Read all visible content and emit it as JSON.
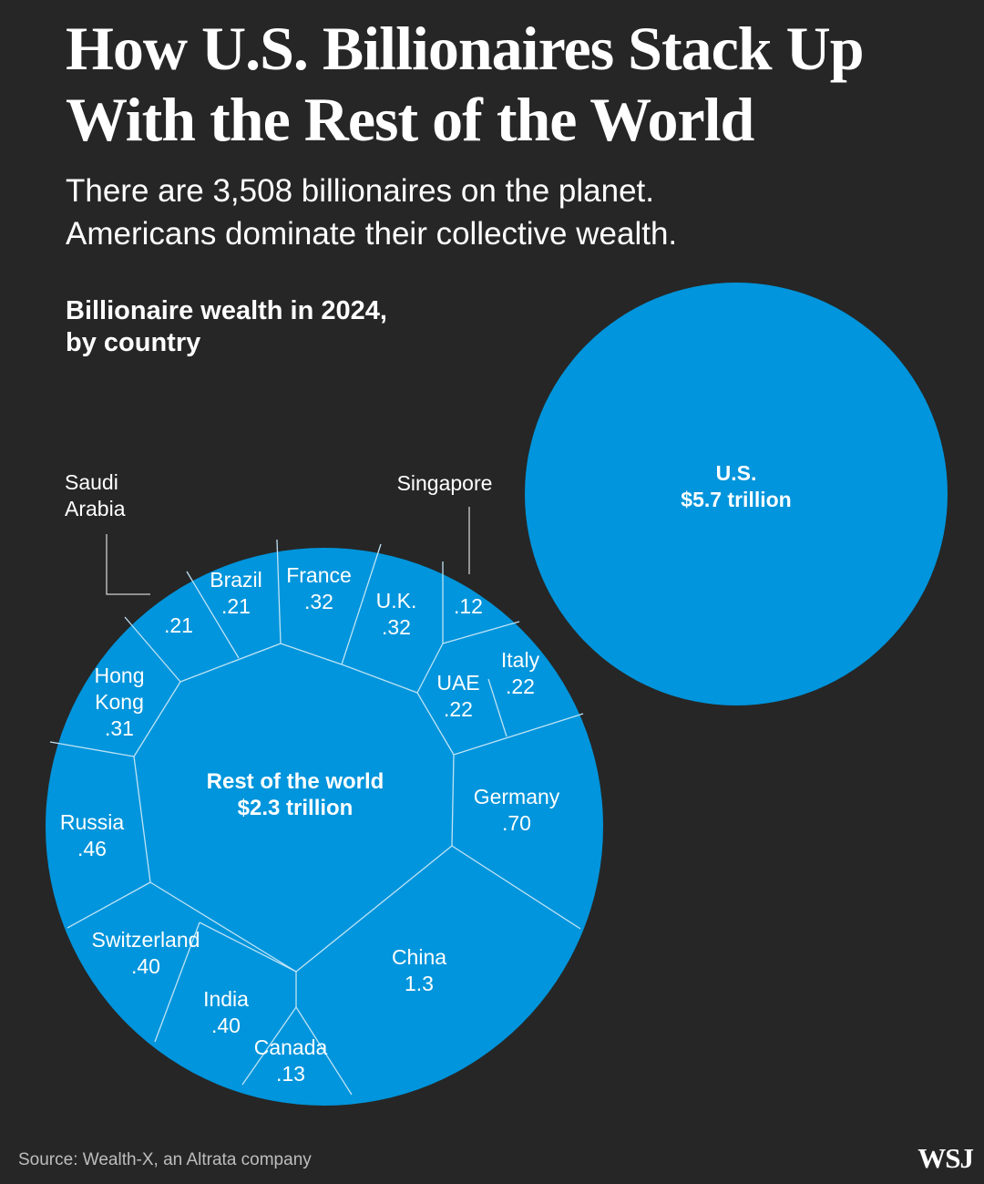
{
  "header": {
    "title": "How U.S. Billionaires Stack Up With the Rest of the World",
    "subtitle_lines": [
      "There are 3,508 billionaires on the planet.",
      "Americans dominate their collective wealth."
    ],
    "chart_heading_lines": [
      "Billionaire wealth in 2024,",
      "by country"
    ]
  },
  "colors": {
    "background": "#262626",
    "bubble": "#0095dc",
    "divider": "#bfe3f6",
    "text": "#ffffff",
    "leader": "#cfcfcf"
  },
  "chart_data": {
    "type": "bubble-voronoi",
    "title": "Billionaire wealth in 2024, by country",
    "unit": "trillions of dollars",
    "series": [
      {
        "name": "U.S.",
        "label": "$5.7 trillion",
        "value": 5.7
      },
      {
        "name": "Rest of the world",
        "label": "$2.3 trillion",
        "value": 2.3
      },
      {
        "name": "China",
        "label": "1.3",
        "value": 1.3
      },
      {
        "name": "Germany",
        "label": ".70",
        "value": 0.7
      },
      {
        "name": "Russia",
        "label": ".46",
        "value": 0.46
      },
      {
        "name": "Switzerland",
        "label": ".40",
        "value": 0.4
      },
      {
        "name": "India",
        "label": ".40",
        "value": 0.4
      },
      {
        "name": "France",
        "label": ".32",
        "value": 0.32
      },
      {
        "name": "U.K.",
        "label": ".32",
        "value": 0.32
      },
      {
        "name": "Hong Kong",
        "label": ".31",
        "value": 0.31
      },
      {
        "name": "Italy",
        "label": ".22",
        "value": 0.22
      },
      {
        "name": "UAE",
        "label": ".22",
        "value": 0.22
      },
      {
        "name": "Brazil",
        "label": ".21",
        "value": 0.21
      },
      {
        "name": "Saudi Arabia",
        "label": ".21",
        "value": 0.21
      },
      {
        "name": "Canada",
        "label": ".13",
        "value": 0.13
      },
      {
        "name": "Singapore",
        "label": ".12",
        "value": 0.12
      }
    ]
  },
  "footer": {
    "source": "Source: Wealth-X, an Altrata company",
    "logo": "WSJ"
  }
}
